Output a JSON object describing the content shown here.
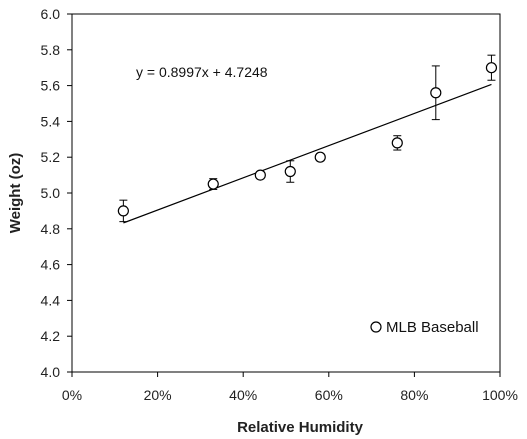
{
  "chart_data": {
    "type": "scatter",
    "xlabel": "Relative Humidity",
    "ylabel": "Weight (oz)",
    "xlim": [
      0,
      1
    ],
    "ylim": [
      4.0,
      6.0
    ],
    "x_ticks": [
      0,
      0.2,
      0.4,
      0.6,
      0.8,
      1.0
    ],
    "x_tick_labels": [
      "0%",
      "20%",
      "40%",
      "60%",
      "80%",
      "100%"
    ],
    "y_ticks": [
      4.0,
      4.2,
      4.4,
      4.6,
      4.8,
      5.0,
      5.2,
      5.4,
      5.6,
      5.8,
      6.0
    ],
    "y_tick_labels": [
      "4.0",
      "4.2",
      "4.4",
      "4.6",
      "4.8",
      "5.0",
      "5.2",
      "5.4",
      "5.6",
      "5.8",
      "6.0"
    ],
    "series": [
      {
        "name": "MLB Baseball",
        "marker": "open-circle",
        "color": "#000000",
        "points": [
          {
            "x": 0.12,
            "y": 4.9,
            "err_low": 4.84,
            "err_high": 4.96
          },
          {
            "x": 0.33,
            "y": 5.05,
            "err_low": 5.02,
            "err_high": 5.08
          },
          {
            "x": 0.44,
            "y": 5.1,
            "err_low": 5.08,
            "err_high": 5.12
          },
          {
            "x": 0.51,
            "y": 5.12,
            "err_low": 5.06,
            "err_high": 5.18
          },
          {
            "x": 0.58,
            "y": 5.2,
            "err_low": 5.18,
            "err_high": 5.22
          },
          {
            "x": 0.76,
            "y": 5.28,
            "err_low": 5.24,
            "err_high": 5.32
          },
          {
            "x": 0.85,
            "y": 5.56,
            "err_low": 5.41,
            "err_high": 5.71
          },
          {
            "x": 0.98,
            "y": 5.7,
            "err_low": 5.63,
            "err_high": 5.77
          }
        ]
      }
    ],
    "trendline": {
      "slope": 0.8997,
      "intercept": 4.7248,
      "x_range": [
        0.12,
        0.98
      ],
      "equation_label": "y = 0.8997x + 4.7248"
    },
    "legend": {
      "position": "bottom-right",
      "entries": [
        "MLB Baseball"
      ]
    },
    "grid": false
  }
}
